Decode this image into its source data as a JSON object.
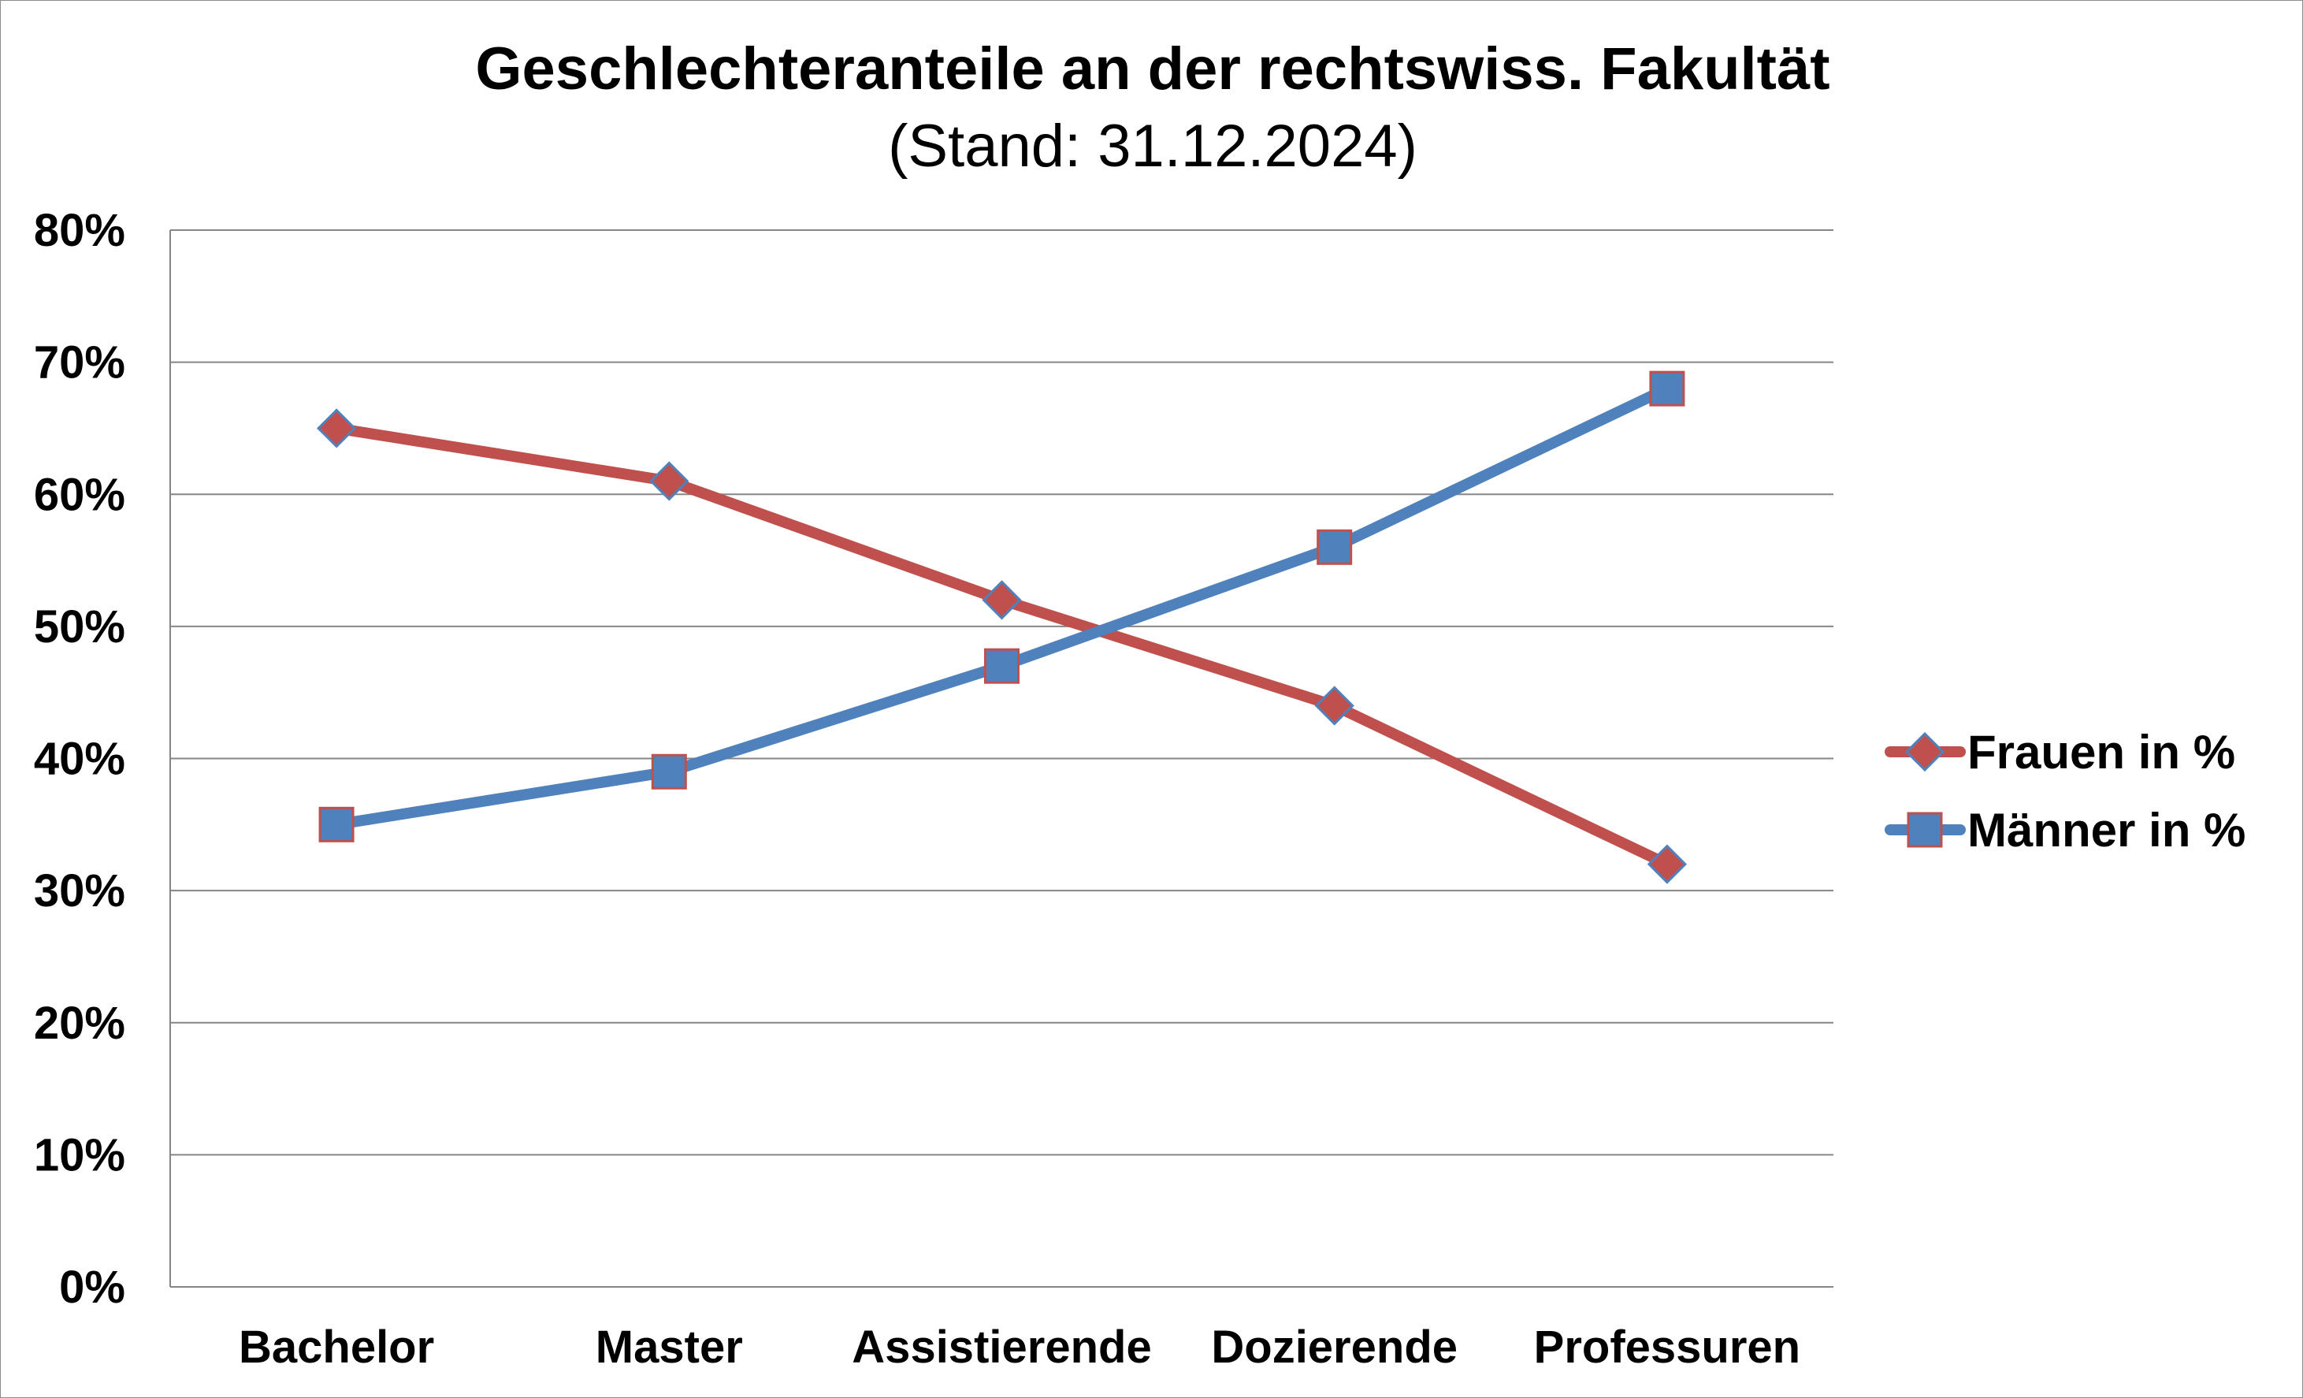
{
  "chart_data": {
    "type": "line",
    "title": "Geschlechteranteile an der rechtswiss. Fakultät",
    "subtitle": "(Stand: 31.12.2024)",
    "xlabel": "",
    "ylabel": "",
    "categories": [
      "Bachelor",
      "Master",
      "Assistierende",
      "Dozierende",
      "Professuren"
    ],
    "series": [
      {
        "name": "Frauen in %",
        "values": [
          65,
          61,
          52,
          44,
          32
        ],
        "color": "#c0504d",
        "marker": "diamond",
        "marker_border": "#4f81bd"
      },
      {
        "name": "Männer in %",
        "values": [
          35,
          39,
          47,
          56,
          68
        ],
        "color": "#4f81bd",
        "marker": "square",
        "marker_border": "#c0504d"
      }
    ],
    "ylim": [
      0,
      80
    ],
    "ytick_step": 10,
    "ytick_labels": [
      "0%",
      "10%",
      "20%",
      "30%",
      "40%",
      "50%",
      "60%",
      "70%",
      "80%"
    ],
    "grid": true,
    "gridline_color": "#868686",
    "legend_position": "right"
  }
}
